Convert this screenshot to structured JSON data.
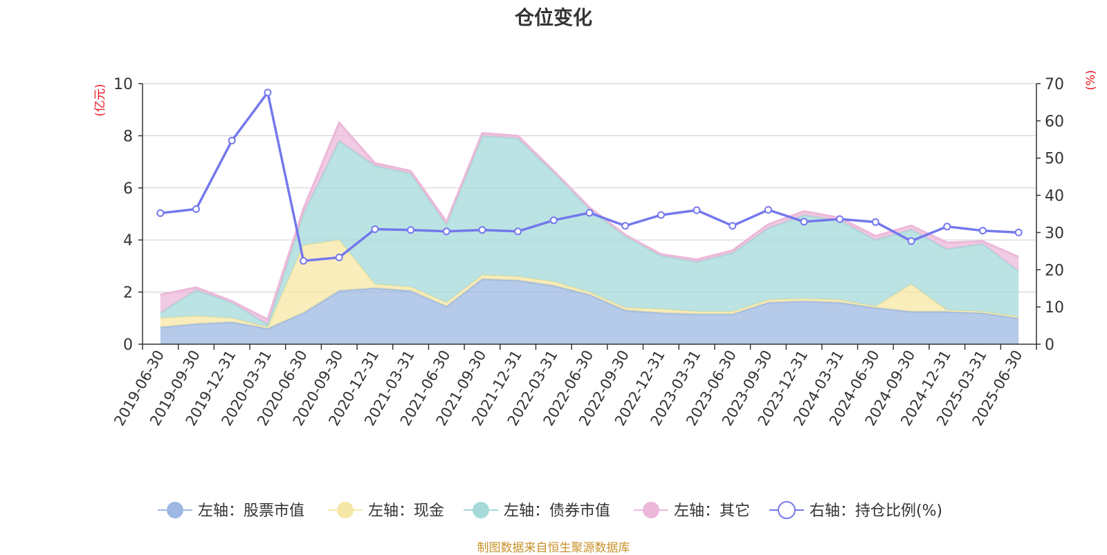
{
  "chart_data": {
    "type": "area",
    "title": "仓位变化",
    "source_note": "制图数据来自恒生聚源数据库",
    "left_axis": {
      "unit": "(亿元)",
      "range": [
        0,
        10
      ],
      "ticks": [
        0,
        2,
        4,
        6,
        8,
        10
      ],
      "tick_labels": [
        "0",
        "2",
        "4",
        "6",
        "8",
        "10"
      ]
    },
    "right_axis": {
      "unit": "(%)",
      "range": [
        0,
        70
      ],
      "ticks": [
        0,
        10,
        20,
        30,
        40,
        50,
        60,
        70
      ],
      "tick_labels": [
        "0",
        "10",
        "20",
        "30",
        "40",
        "50",
        "60",
        "70"
      ]
    },
    "grid": true,
    "stacked": true,
    "legend_position": "bottom-center",
    "x": [
      "2019-06-30",
      "2019-09-30",
      "2019-12-31",
      "2020-03-31",
      "2020-06-30",
      "2020-09-30",
      "2020-12-31",
      "2021-03-31",
      "2021-06-30",
      "2021-09-30",
      "2021-12-31",
      "2022-03-31",
      "2022-06-30",
      "2022-09-30",
      "2022-12-31",
      "2023-03-31",
      "2023-06-30",
      "2023-09-30",
      "2023-12-31",
      "2024-03-31",
      "2024-06-30",
      "2024-09-30",
      "2024-12-31",
      "2025-03-31",
      "2025-06-30"
    ],
    "series": [
      {
        "name": "左轴：股票市值",
        "axis": "left",
        "kind": "area",
        "color": "#9db8e2",
        "values": [
          0.65,
          0.78,
          0.85,
          0.6,
          1.2,
          2.05,
          2.15,
          2.05,
          1.45,
          2.5,
          2.45,
          2.25,
          1.9,
          1.3,
          1.2,
          1.15,
          1.15,
          1.6,
          1.65,
          1.6,
          1.4,
          1.25,
          1.25,
          1.2,
          1.0
        ]
      },
      {
        "name": "左轴：现金",
        "axis": "left",
        "kind": "area",
        "color": "#f7e7a6",
        "values": [
          0.35,
          0.3,
          0.15,
          0.05,
          2.6,
          1.95,
          0.15,
          0.15,
          0.15,
          0.15,
          0.15,
          0.15,
          0.1,
          0.1,
          0.15,
          0.1,
          0.1,
          0.1,
          0.1,
          0.1,
          0.05,
          1.05,
          0.05,
          0.05,
          0.05
        ]
      },
      {
        "name": "左轴：债券市值",
        "axis": "left",
        "kind": "area",
        "color": "#a6d9d9",
        "values": [
          0.2,
          1.0,
          0.6,
          0.1,
          1.2,
          3.8,
          4.55,
          4.35,
          3.0,
          5.35,
          5.3,
          4.2,
          3.2,
          2.75,
          2.05,
          1.9,
          2.25,
          2.75,
          3.2,
          3.05,
          2.55,
          2.1,
          2.35,
          2.6,
          1.75
        ]
      },
      {
        "name": "左轴：其它",
        "axis": "left",
        "kind": "area",
        "color": "#ecb8d9",
        "values": [
          0.7,
          0.1,
          0.05,
          0.2,
          0.2,
          0.7,
          0.1,
          0.1,
          0.1,
          0.1,
          0.1,
          0.05,
          0.05,
          0.05,
          0.05,
          0.1,
          0.1,
          0.15,
          0.15,
          0.1,
          0.15,
          0.15,
          0.25,
          0.1,
          0.55
        ]
      },
      {
        "name": "右轴：持仓比例(%)",
        "axis": "right",
        "kind": "line",
        "color": "#7478ec",
        "values": [
          35.2,
          36.3,
          54.7,
          67.6,
          22.4,
          23.3,
          30.9,
          30.7,
          30.3,
          30.7,
          30.3,
          33.3,
          35.3,
          31.8,
          34.7,
          36.0,
          31.8,
          36.1,
          32.9,
          33.6,
          32.8,
          27.7,
          31.6,
          30.5,
          30.0
        ]
      }
    ]
  }
}
